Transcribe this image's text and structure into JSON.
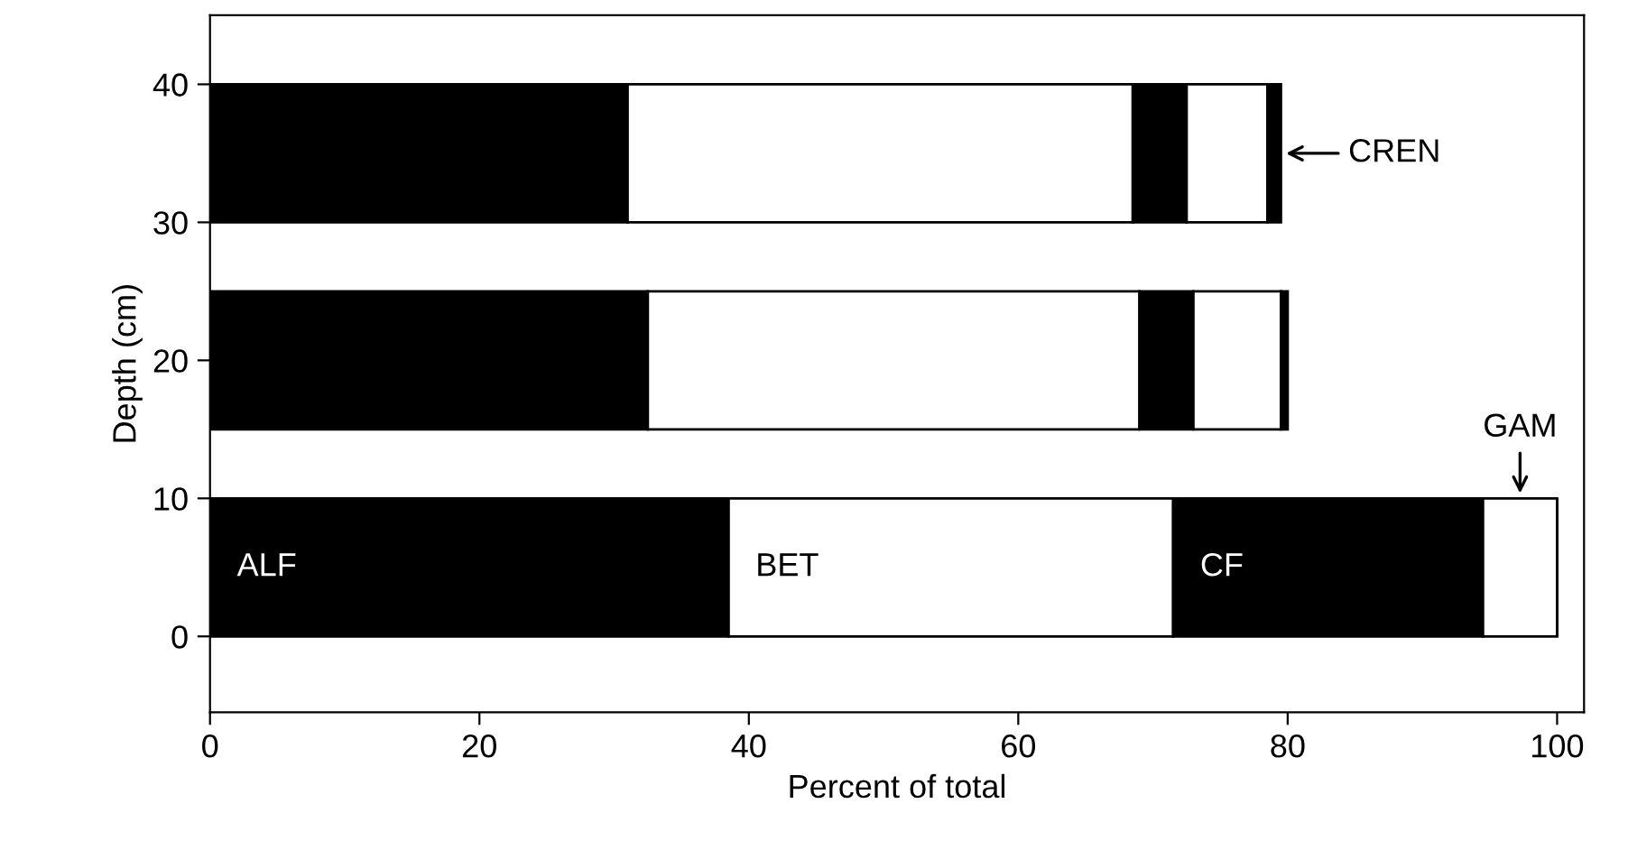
{
  "chart_data": {
    "type": "bar",
    "orientation": "horizontal",
    "stacked": true,
    "xlabel": "Percent of total",
    "ylabel": "Depth (cm)",
    "x": [
      5,
      20,
      35
    ],
    "series": [
      {
        "name": "ALF",
        "color": "#000000",
        "values": [
          38.5,
          32.5,
          31
        ]
      },
      {
        "name": "BET",
        "color": "#ffffff",
        "values": [
          33,
          36.5,
          37.5
        ]
      },
      {
        "name": "CF",
        "color": "#000000",
        "values": [
          23,
          4,
          4
        ]
      },
      {
        "name": "GAM",
        "color": "#ffffff",
        "values": [
          5.5,
          6.5,
          6
        ]
      },
      {
        "name": "CREN",
        "color": "#000000",
        "values": [
          0,
          0.5,
          1
        ]
      }
    ],
    "xlim": [
      0,
      102
    ],
    "xticks": [
      0,
      20,
      40,
      60,
      80,
      100
    ],
    "ylim": [
      -5.5,
      45
    ],
    "yticks": [
      0,
      10,
      20,
      30,
      40
    ],
    "grid": false
  }
}
